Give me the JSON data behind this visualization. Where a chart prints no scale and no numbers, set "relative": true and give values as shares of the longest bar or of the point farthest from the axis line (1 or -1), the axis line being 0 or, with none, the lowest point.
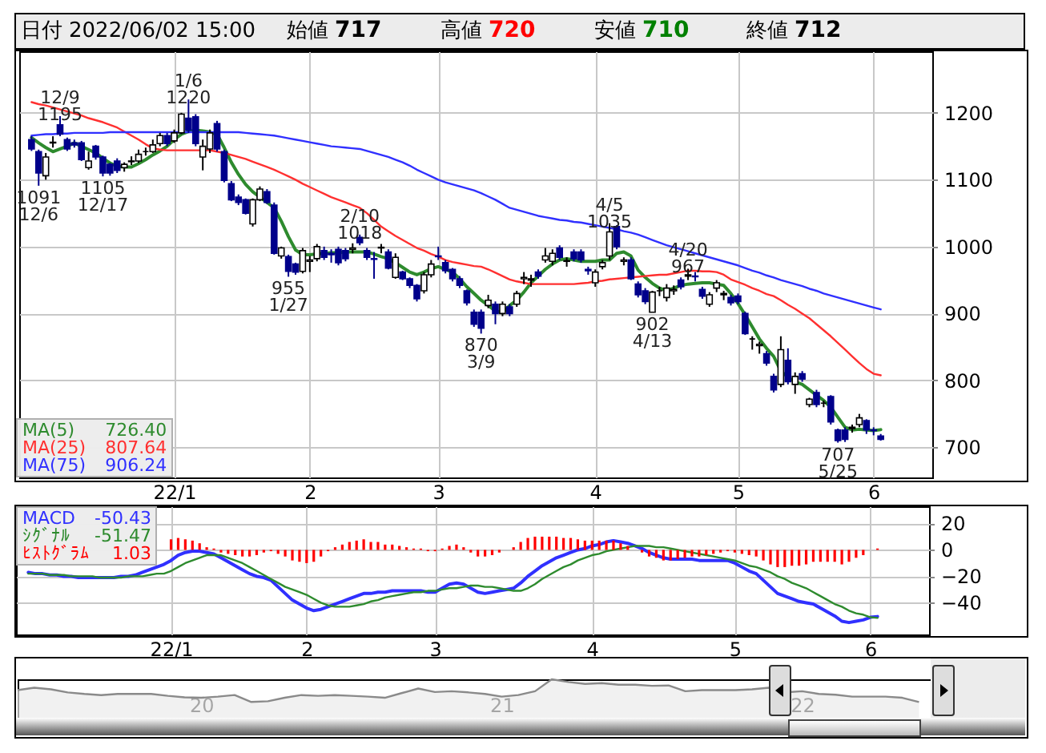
{
  "chart_data": [
    {
      "type": "other",
      "annotations": [
        "日付",
        "2022/06/02 15:00",
        "始値",
        "717",
        "高値",
        "720",
        "安値",
        "710",
        "終値",
        "712"
      ]
    },
    {
      "type": "candlestick",
      "categories": [
        null,
        null,
        null,
        null,
        null,
        null,
        null,
        null,
        null,
        null,
        null,
        null,
        null,
        null,
        null,
        null,
        null,
        null,
        null,
        null,
        "22/1",
        null,
        null,
        null,
        null,
        null,
        null,
        null,
        null,
        null,
        null,
        null,
        null,
        null,
        null,
        null,
        null,
        null,
        null,
        "2",
        null,
        null,
        null,
        null,
        null,
        null,
        null,
        null,
        null,
        null,
        null,
        null,
        null,
        null,
        null,
        null,
        null,
        "3",
        null,
        null,
        null,
        null,
        null,
        null,
        null,
        null,
        null,
        null,
        null,
        null,
        null,
        null,
        null,
        null,
        null,
        null,
        null,
        null,
        null,
        "4",
        null,
        null,
        null,
        null,
        null,
        null,
        null,
        null,
        null,
        null,
        null,
        null,
        null,
        null,
        null,
        null,
        null,
        null,
        null,
        "5",
        null,
        null,
        null,
        null,
        null,
        null,
        null,
        null,
        null,
        null,
        null,
        null,
        null,
        null,
        null,
        null,
        null,
        null,
        "6",
        null
      ],
      "ohlc": [
        [
          1160,
          1165,
          1143,
          1146
        ],
        [
          1142,
          1145,
          1091,
          1110
        ],
        [
          1106,
          1140,
          1100,
          1134
        ],
        [
          1155,
          1165,
          1148,
          1156
        ],
        [
          1182,
          1195,
          1165,
          1168
        ],
        [
          1160,
          1163,
          1143,
          1146
        ],
        [
          1155,
          1160,
          1148,
          1152
        ],
        [
          1155,
          1158,
          1128,
          1130
        ],
        [
          1118,
          1142,
          1115,
          1128
        ],
        [
          1150,
          1152,
          1130,
          1134
        ],
        [
          1134,
          1136,
          1105,
          1110
        ],
        [
          1123,
          1125,
          1106,
          1110
        ],
        [
          1128,
          1132,
          1110,
          1114
        ],
        [
          1118,
          1126,
          1112,
          1123
        ],
        [
          1127,
          1135,
          1122,
          1128
        ],
        [
          1128,
          1145,
          1125,
          1138
        ],
        [
          1142,
          1148,
          1136,
          1142
        ],
        [
          1142,
          1160,
          1140,
          1152
        ],
        [
          1154,
          1170,
          1150,
          1166
        ],
        [
          1166,
          1170,
          1150,
          1154
        ],
        [
          1158,
          1175,
          1155,
          1170
        ],
        [
          1170,
          1200,
          1168,
          1198
        ],
        [
          1192,
          1220,
          1170,
          1174
        ],
        [
          1194,
          1198,
          1150,
          1154
        ],
        [
          1134,
          1160,
          1114,
          1150
        ],
        [
          1146,
          1175,
          1140,
          1170
        ],
        [
          1184,
          1188,
          1142,
          1146
        ],
        [
          1142,
          1145,
          1096,
          1099
        ],
        [
          1094,
          1098,
          1068,
          1070
        ],
        [
          1074,
          1078,
          1062,
          1066
        ],
        [
          1070,
          1072,
          1048,
          1050
        ],
        [
          1034,
          1072,
          1030,
          1070
        ],
        [
          1070,
          1090,
          1068,
          1086
        ],
        [
          1082,
          1086,
          1064,
          1066
        ],
        [
          1062,
          1066,
          988,
          990
        ],
        [
          986,
          1000,
          982,
          998
        ],
        [
          985,
          988,
          955,
          963
        ],
        [
          974,
          976,
          958,
          962
        ],
        [
          963,
          998,
          960,
          994
        ],
        [
          978,
          986,
          962,
          980
        ],
        [
          982,
          1004,
          978,
          1000
        ],
        [
          994,
          1000,
          980,
          984
        ],
        [
          990,
          996,
          976,
          988
        ],
        [
          996,
          1000,
          972,
          976
        ],
        [
          994,
          998,
          978,
          982
        ],
        [
          996,
          1005,
          990,
          998
        ],
        [
          1014,
          1018,
          1002,
          1006
        ],
        [
          994,
          998,
          980,
          984
        ],
        [
          982,
          992,
          952,
          981
        ],
        [
          998,
          1004,
          990,
          999
        ],
        [
          992,
          996,
          966,
          968
        ],
        [
          954,
          990,
          952,
          984
        ],
        [
          962,
          964,
          950,
          952
        ],
        [
          952,
          954,
          938,
          942
        ],
        [
          942,
          944,
          918,
          922
        ],
        [
          934,
          962,
          930,
          958
        ],
        [
          958,
          980,
          954,
          974
        ],
        [
          986,
          1000,
          980,
          985
        ],
        [
          976,
          980,
          960,
          964
        ],
        [
          966,
          968,
          948,
          952
        ],
        [
          952,
          956,
          938,
          942
        ],
        [
          934,
          936,
          912,
          916
        ],
        [
          902,
          906,
          880,
          884
        ],
        [
          902,
          906,
          870,
          878
        ],
        [
          912,
          928,
          908,
          920
        ],
        [
          914,
          918,
          884,
          900
        ],
        [
          900,
          918,
          896,
          914
        ],
        [
          910,
          914,
          896,
          900
        ],
        [
          914,
          934,
          910,
          930
        ],
        [
          952,
          962,
          944,
          954
        ],
        [
          950,
          958,
          940,
          952
        ],
        [
          962,
          966,
          952,
          956
        ],
        [
          980,
          998,
          976,
          986
        ],
        [
          978,
          996,
          972,
          990
        ],
        [
          998,
          1002,
          980,
          984
        ],
        [
          978,
          984,
          970,
          979
        ],
        [
          992,
          996,
          978,
          982
        ],
        [
          992,
          996,
          976,
          980
        ],
        [
          966,
          970,
          958,
          964
        ],
        [
          946,
          966,
          940,
          962
        ],
        [
          970,
          980,
          966,
          976
        ],
        [
          986,
          1035,
          980,
          1022
        ],
        [
          1030,
          1032,
          996,
          1000
        ],
        [
          978,
          984,
          972,
          980
        ],
        [
          980,
          984,
          950,
          952
        ],
        [
          944,
          948,
          924,
          928
        ],
        [
          934,
          938,
          914,
          918
        ],
        [
          902,
          934,
          902,
          932
        ],
        [
          934,
          940,
          926,
          934
        ],
        [
          924,
          944,
          918,
          938
        ],
        [
          934,
          942,
          928,
          936
        ],
        [
          950,
          954,
          936,
          940
        ],
        [
          956,
          967,
          950,
          958
        ],
        [
          956,
          962,
          948,
          955
        ],
        [
          936,
          940,
          922,
          926
        ],
        [
          914,
          932,
          910,
          928
        ],
        [
          938,
          950,
          932,
          946
        ],
        [
          928,
          934,
          920,
          930
        ],
        [
          924,
          928,
          912,
          916
        ],
        [
          926,
          930,
          914,
          918
        ],
        [
          900,
          903,
          868,
          870
        ],
        [
          862,
          866,
          846,
          862
        ],
        [
          852,
          858,
          840,
          854
        ],
        [
          840,
          844,
          822,
          826
        ],
        [
          806,
          810,
          782,
          786
        ],
        [
          794,
          866,
          790,
          846
        ],
        [
          830,
          848,
          794,
          798
        ],
        [
          794,
          812,
          780,
          806
        ],
        [
          810,
          814,
          798,
          802
        ],
        [
          764,
          774,
          760,
          772
        ],
        [
          782,
          786,
          760,
          764
        ],
        [
          766,
          770,
          760,
          766
        ],
        [
          776,
          778,
          734,
          738
        ],
        [
          726,
          728,
          707,
          710
        ],
        [
          726,
          730,
          708,
          712
        ],
        [
          728,
          734,
          722,
          730
        ],
        [
          734,
          750,
          730,
          744
        ],
        [
          740,
          742,
          720,
          726
        ],
        [
          726,
          730,
          718,
          725
        ],
        [
          717,
          720,
          710,
          712
        ]
      ],
      "series": [
        {
          "name": "MA(5)",
          "type": "line",
          "color": "#2e8b2e",
          "values": [
            1163,
            1155,
            1148,
            1142,
            1146,
            1150,
            1155,
            1150,
            1145,
            1140,
            1132,
            1125,
            1120,
            1119,
            1119,
            1124,
            1130,
            1137,
            1143,
            1150,
            1160,
            1168,
            1172,
            1174,
            1173,
            1171,
            1168,
            1148,
            1126,
            1108,
            1093,
            1082,
            1074,
            1066,
            1058,
            1038,
            1015,
            995,
            988,
            988,
            989,
            990,
            991,
            991,
            992,
            992,
            992,
            992,
            989,
            985,
            982,
            976,
            969,
            962,
            958,
            962,
            967,
            970,
            966,
            962,
            952,
            940,
            930,
            920,
            912,
            904,
            901,
            912,
            920,
            932,
            946,
            956,
            966,
            974,
            980,
            982,
            980,
            978,
            978,
            978,
            980,
            980,
            990,
            992,
            986,
            965,
            954,
            945,
            938,
            934,
            938,
            942,
            944,
            945,
            946,
            946,
            944,
            942,
            930,
            915,
            898,
            880,
            862,
            848,
            836,
            814,
            805,
            798,
            794,
            786,
            778,
            770,
            760,
            745,
            730,
            726,
            727,
            726,
            725,
            726.4
          ]
        },
        {
          "name": "MA(25)",
          "type": "line",
          "color": "#ff3030",
          "values": [
            1216,
            1213,
            1211,
            1208,
            1205,
            1202,
            1199,
            1196,
            1192,
            1189,
            1186,
            1182,
            1178,
            1172,
            1166,
            1160,
            1153,
            1147,
            1145,
            1144,
            1144,
            1144,
            1144,
            1144,
            1144,
            1144,
            1142,
            1140,
            1137,
            1134,
            1131,
            1127,
            1123,
            1119,
            1115,
            1110,
            1105,
            1100,
            1094,
            1089,
            1084,
            1079,
            1074,
            1070,
            1066,
            1062,
            1058,
            1050,
            1040,
            1030,
            1023,
            1016,
            1010,
            1004,
            998,
            994,
            989,
            985,
            980,
            977,
            975,
            973,
            971,
            970,
            966,
            961,
            956,
            951,
            948,
            946,
            944,
            944,
            944,
            944,
            944,
            944,
            944,
            945,
            946,
            948,
            949,
            951,
            952,
            953,
            954,
            955,
            956,
            957,
            958,
            958,
            960,
            962,
            964,
            964,
            963,
            963,
            962,
            958,
            951,
            947,
            943,
            938,
            934,
            929,
            926,
            920,
            913,
            907,
            900,
            893,
            884,
            875,
            866,
            856,
            846,
            836,
            826,
            817,
            810,
            807.64
          ]
        },
        {
          "name": "MA(75)",
          "type": "line",
          "color": "#3030ff",
          "values": [
            1166,
            1167,
            1168,
            1168,
            1169,
            1169,
            1170,
            1170,
            1170,
            1170,
            1170,
            1171,
            1171,
            1171,
            1171,
            1171,
            1171,
            1171,
            1171,
            1171,
            1171,
            1171,
            1171,
            1171,
            1171,
            1171,
            1171,
            1171,
            1171,
            1171,
            1170,
            1169,
            1168,
            1167,
            1166,
            1164,
            1162,
            1160,
            1158,
            1156,
            1154,
            1152,
            1150,
            1149,
            1148,
            1147,
            1146,
            1143,
            1140,
            1137,
            1134,
            1130,
            1126,
            1121,
            1115,
            1110,
            1105,
            1100,
            1096,
            1093,
            1090,
            1087,
            1084,
            1080,
            1075,
            1070,
            1064,
            1058,
            1055,
            1052,
            1049,
            1046,
            1044,
            1042,
            1040,
            1039,
            1037,
            1036,
            1034,
            1032,
            1030,
            1028,
            1026,
            1023,
            1021,
            1018,
            1014,
            1010,
            1006,
            1002,
            999,
            996,
            993,
            990,
            987,
            984,
            981,
            978,
            975,
            972,
            968,
            964,
            961,
            957,
            954,
            950,
            947,
            944,
            941,
            937,
            934,
            930,
            927,
            924,
            921,
            918,
            915,
            912,
            909,
            906.24
          ]
        }
      ],
      "ylim": [
        655,
        1292
      ],
      "yticks": [
        700,
        800,
        900,
        1000,
        1100,
        1200
      ],
      "grid": true,
      "legend": "bottom left",
      "annotations": [
        "726.40",
        "807.64",
        "906.24",
        {
          "text": "12/9\n1195",
          "y": 1195
        },
        {
          "text": "1/6\n1220",
          "y": 1220
        },
        {
          "text": "1091\n12/6",
          "y": 1091
        },
        {
          "text": "1105\n12/17",
          "y": 1105
        },
        {
          "text": "955\n1/27",
          "y": 955
        },
        {
          "text": "2/10\n1018",
          "y": 1018
        },
        {
          "text": "870\n3/9",
          "y": 870
        },
        {
          "text": "4/5\n1035",
          "y": 1035
        },
        {
          "text": "4/20\n967",
          "y": 967
        },
        {
          "text": "902\n4/13",
          "y": 902
        },
        {
          "text": "707\n5/25",
          "y": 707
        }
      ]
    },
    {
      "type": "line",
      "categories": [
        null,
        null,
        null,
        null,
        null,
        null,
        null,
        null,
        null,
        null,
        null,
        null,
        null,
        null,
        null,
        null,
        null,
        null,
        null,
        null,
        "22/1",
        null,
        null,
        null,
        null,
        null,
        null,
        null,
        null,
        null,
        null,
        null,
        null,
        null,
        null,
        null,
        null,
        null,
        null,
        "2",
        null,
        null,
        null,
        null,
        null,
        null,
        null,
        null,
        null,
        null,
        null,
        null,
        null,
        null,
        null,
        null,
        null,
        "3",
        null,
        null,
        null,
        null,
        null,
        null,
        null,
        null,
        null,
        null,
        null,
        null,
        null,
        null,
        null,
        null,
        null,
        null,
        null,
        null,
        null,
        "4",
        null,
        null,
        null,
        null,
        null,
        null,
        null,
        null,
        null,
        null,
        null,
        null,
        null,
        null,
        null,
        null,
        null,
        null,
        null,
        "5",
        null,
        null,
        null,
        null,
        null,
        null,
        null,
        null,
        null,
        null,
        null,
        null,
        null,
        null,
        null,
        null,
        null,
        null,
        "6",
        null
      ],
      "series": [
        {
          "name": "MACD",
          "type": "line",
          "color": "#3030ff",
          "values": [
            -17,
            -18,
            -18,
            -19,
            -19,
            -20,
            -20,
            -21,
            -21,
            -21,
            -21,
            -21,
            -21,
            -20,
            -20,
            -19,
            -17,
            -15,
            -13,
            -11,
            -8,
            -4,
            -2,
            -1,
            -1,
            -2,
            -3,
            -6,
            -9,
            -12,
            -15,
            -18,
            -20,
            -21,
            -23,
            -28,
            -33,
            -38,
            -41,
            -44,
            -46,
            -45,
            -43,
            -41,
            -39,
            -37,
            -35,
            -33,
            -33,
            -32,
            -32,
            -31,
            -31,
            -31,
            -31,
            -31,
            -32,
            -32,
            -29,
            -26,
            -25,
            -26,
            -29,
            -32,
            -33,
            -32,
            -31,
            -30,
            -29,
            -25,
            -20,
            -16,
            -12,
            -9,
            -6,
            -4,
            -2,
            0,
            1,
            3,
            4,
            6,
            7,
            6,
            5,
            3,
            1,
            -2,
            -4,
            -6,
            -7,
            -7,
            -7,
            -7,
            -8,
            -8,
            -8,
            -8,
            -8,
            -10,
            -13,
            -16,
            -18,
            -23,
            -28,
            -33,
            -35,
            -37,
            -39,
            -40,
            -41,
            -44,
            -47,
            -50,
            -54,
            -55,
            -54,
            -53,
            -51,
            -50.43
          ]
        },
        {
          "name": "ｼｸﾞﾅﾙ",
          "type": "line",
          "color": "#2e8b2e",
          "values": [
            -18,
            -18,
            -18,
            -19,
            -19,
            -19,
            -20,
            -20,
            -20,
            -20,
            -21,
            -21,
            -21,
            -21,
            -20,
            -20,
            -20,
            -19,
            -18,
            -18,
            -16,
            -13,
            -10,
            -8,
            -6,
            -4,
            -4,
            -4,
            -6,
            -8,
            -10,
            -13,
            -16,
            -19,
            -22,
            -25,
            -28,
            -30,
            -32,
            -34,
            -37,
            -40,
            -42,
            -43,
            -43,
            -43,
            -42,
            -41,
            -39,
            -38,
            -36,
            -35,
            -34,
            -33,
            -32,
            -32,
            -31,
            -31,
            -30,
            -29,
            -29,
            -28,
            -27,
            -27,
            -28,
            -28,
            -29,
            -30,
            -31,
            -31,
            -29,
            -26,
            -22,
            -19,
            -16,
            -13,
            -11,
            -8,
            -6,
            -4,
            -3,
            -1,
            0,
            1,
            2,
            3,
            3,
            3,
            2,
            2,
            1,
            0,
            -1,
            -2,
            -3,
            -4,
            -5,
            -6,
            -7,
            -8,
            -10,
            -12,
            -13,
            -15,
            -17,
            -20,
            -22,
            -25,
            -27,
            -29,
            -32,
            -35,
            -38,
            -41,
            -43,
            -46,
            -48,
            -49,
            -51,
            -51.47
          ]
        },
        {
          "name": "ﾋｽﾄｸﾞﾗﾑ",
          "type": "bar",
          "color": "#ff0000",
          "values": [
            null,
            null,
            null,
            null,
            null,
            null,
            null,
            null,
            null,
            null,
            null,
            null,
            null,
            null,
            null,
            null,
            null,
            null,
            null,
            null,
            8,
            9,
            8,
            7,
            5,
            2,
            1,
            -2,
            -3,
            -4,
            -5,
            -5,
            -4,
            -2,
            -1,
            -3,
            -5,
            -8,
            -9,
            -10,
            -9,
            -5,
            -1,
            2,
            4,
            6,
            7,
            8,
            6,
            6,
            4,
            4,
            3,
            2,
            1,
            1,
            -1,
            -1,
            1,
            3,
            4,
            2,
            -2,
            -5,
            -5,
            -4,
            -2,
            0,
            2,
            6,
            9,
            10,
            10,
            10,
            10,
            9,
            9,
            8,
            7,
            7,
            7,
            7,
            7,
            5,
            3,
            0,
            -2,
            -5,
            -6,
            -8,
            -8,
            -7,
            -6,
            -5,
            -5,
            -4,
            -3,
            -2,
            -1,
            -2,
            -3,
            -4,
            -5,
            -8,
            -11,
            -13,
            -13,
            -12,
            -12,
            -11,
            -9,
            -9,
            -9,
            -9,
            -11,
            -9,
            -6,
            -4,
            0,
            1.03
          ]
        }
      ],
      "ylim": [
        -64,
        33
      ],
      "yticks": [
        20,
        0,
        -20,
        -40
      ],
      "grid": true,
      "legend": "top left",
      "annotations": [
        "-50.43",
        "-51.47",
        "1.03"
      ]
    },
    {
      "type": "area",
      "relative": true,
      "color": "#8a8a8a",
      "categories": [
        null,
        null,
        null,
        null,
        null,
        null,
        null,
        null,
        null,
        null,
        null,
        "20",
        null,
        null,
        null,
        null,
        null,
        null,
        null,
        null,
        null,
        null,
        null,
        null,
        null,
        null,
        null,
        null,
        null,
        "21",
        null,
        null,
        null,
        null,
        null,
        null,
        null,
        null,
        null,
        null,
        null,
        null,
        null,
        null,
        null,
        null,
        null,
        "22",
        null,
        null,
        null,
        null,
        null,
        null,
        null
      ],
      "values": [
        0.72,
        0.78,
        0.74,
        0.66,
        0.62,
        0.59,
        0.62,
        0.62,
        0.62,
        0.57,
        0.53,
        0.52,
        0.55,
        0.59,
        0.41,
        0.43,
        0.52,
        0.59,
        0.57,
        0.59,
        0.57,
        0.55,
        0.52,
        0.64,
        0.76,
        0.67,
        0.69,
        0.66,
        0.62,
        0.55,
        0.59,
        0.69,
        1,
        0.93,
        0.88,
        0.9,
        0.86,
        0.86,
        0.83,
        0.84,
        0.69,
        0.72,
        0.72,
        0.72,
        0.74,
        0.78,
        0.66,
        0.69,
        0.62,
        0.6,
        0.55,
        0.55,
        0.55,
        0.52,
        0.41
      ]
    }
  ]
}
